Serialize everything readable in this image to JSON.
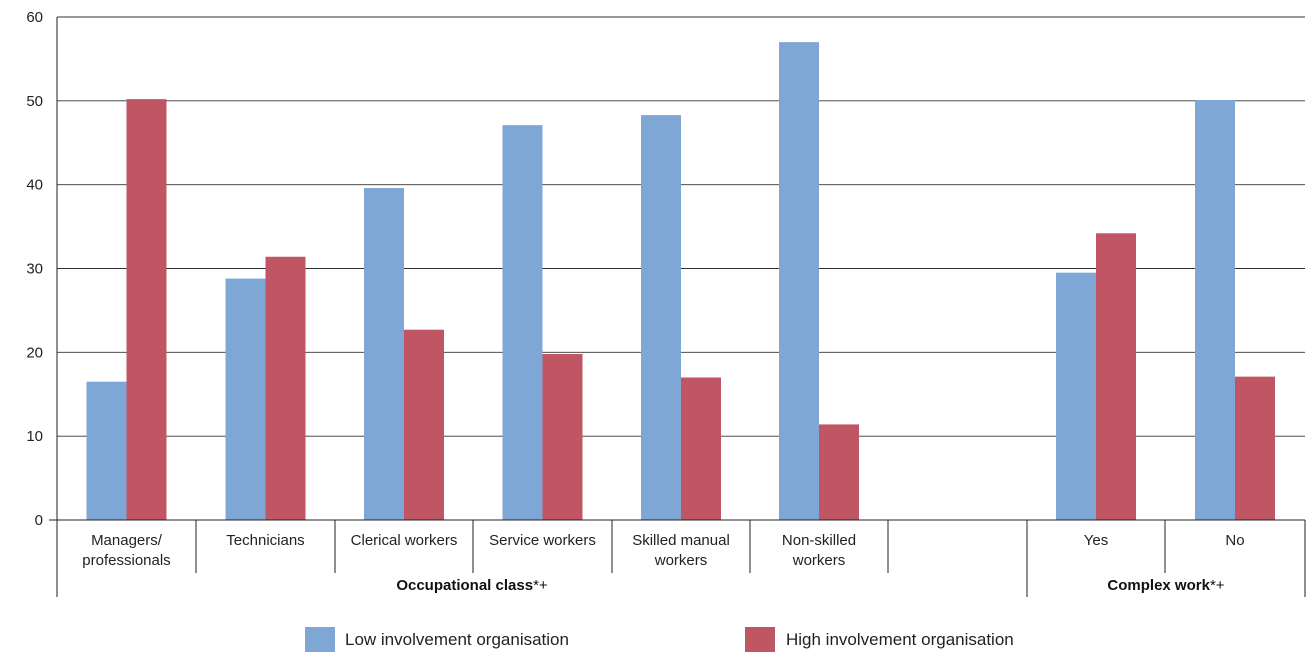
{
  "chart_data": {
    "type": "bar",
    "ylim": [
      0,
      60
    ],
    "yticks": [
      0,
      10,
      20,
      30,
      40,
      50,
      60
    ],
    "grid": true,
    "legend_position": "bottom",
    "categories": [
      {
        "label": [
          "Managers/",
          "professionals"
        ]
      },
      {
        "label": [
          "Technicians"
        ]
      },
      {
        "label": [
          "Clerical workers"
        ]
      },
      {
        "label": [
          "Service workers"
        ]
      },
      {
        "label": [
          "Skilled manual",
          "workers"
        ]
      },
      {
        "label": [
          "Non-skilled",
          "workers"
        ]
      },
      {
        "label": []
      },
      {
        "label": [
          "Yes"
        ]
      },
      {
        "label": [
          "No"
        ]
      }
    ],
    "series": [
      {
        "name": "Low involvement organisation",
        "color": "#7fa7d6",
        "values": [
          16.5,
          28.8,
          39.6,
          47.1,
          48.3,
          57.0,
          null,
          29.5,
          50.1
        ]
      },
      {
        "name": "High involvement organisation",
        "color": "#c05563",
        "values": [
          50.2,
          31.4,
          22.7,
          19.8,
          17.0,
          11.4,
          null,
          34.2,
          17.1
        ]
      }
    ],
    "groups": [
      {
        "bold": "Occupational class",
        "suffix": "*+"
      },
      {
        "bold": "Complex work",
        "suffix": "*+"
      }
    ]
  }
}
